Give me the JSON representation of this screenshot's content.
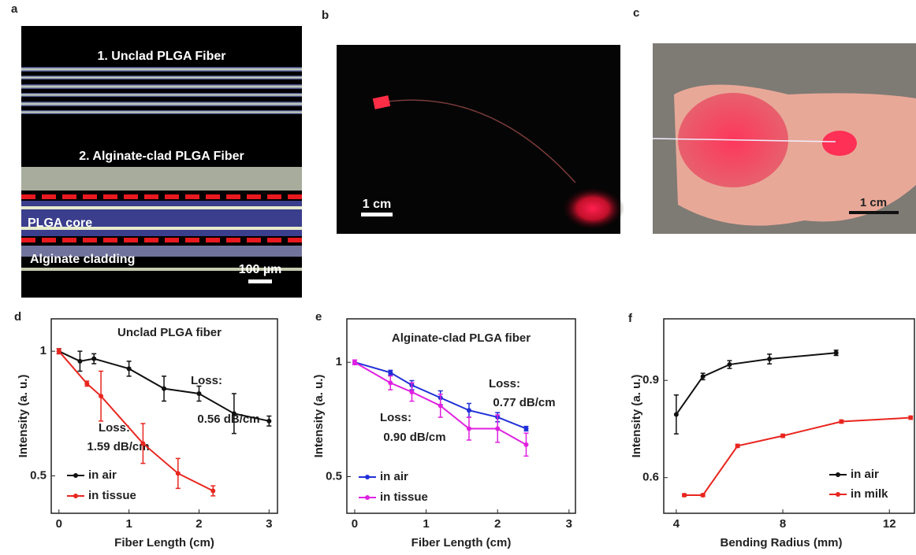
{
  "panels": {
    "a": {
      "label": "a",
      "texts": [
        "1. Unclad PLGA Fiber",
        "2. Alginate-clad PLGA Fiber",
        "PLGA core",
        "Alginate cladding"
      ],
      "scale": "100 µm"
    },
    "b": {
      "label": "b",
      "scale": "1 cm"
    },
    "c": {
      "label": "c",
      "scale": "1 cm"
    }
  },
  "chart_data": [
    {
      "type": "line",
      "panel_label": "d",
      "title": "Unclad PLGA fiber",
      "x_label": "Fiber Length (cm)",
      "y_label": "Intensity (a. u.)",
      "xlim": [
        -0.11,
        3.12
      ],
      "xticks": [
        0,
        1,
        2,
        3
      ],
      "ylim": [
        0.35,
        1.13
      ],
      "yticks": [
        0.5,
        1
      ],
      "annotations": [
        "Loss:",
        "0.56 dB/cm",
        "Loss:",
        "1.59 dB/cm"
      ],
      "series": [
        {
          "name": "in air",
          "color": "#111111",
          "x": [
            0,
            0.3,
            0.5,
            1,
            1.5,
            2,
            2.5,
            3
          ],
          "values": [
            1,
            0.96,
            0.97,
            0.93,
            0.85,
            0.83,
            0.75,
            0.72
          ],
          "errors": [
            0.01,
            0.04,
            0.02,
            0.03,
            0.05,
            0.03,
            0.08,
            0.02
          ]
        },
        {
          "name": "in tissue",
          "color": "#e8261f",
          "x": [
            0,
            0.4,
            0.6,
            1.2,
            1.7,
            2.2
          ],
          "values": [
            1,
            0.87,
            0.82,
            0.63,
            0.51,
            0.44
          ],
          "errors": [
            0.01,
            0.01,
            0.1,
            0.08,
            0.06,
            0.02
          ]
        }
      ]
    },
    {
      "type": "line",
      "panel_label": "e",
      "title": "Alginate-clad PLGA fiber",
      "x_label": "Fiber Length (cm)",
      "y_label": "Intensity (a. u.)",
      "xlim": [
        -0.11,
        3.09
      ],
      "xticks": [
        0,
        1,
        2,
        3
      ],
      "ylim": [
        0.34,
        1.19
      ],
      "yticks": [
        0.5,
        1
      ],
      "annotations": [
        "Loss:",
        "0.77 dB/cm",
        "Loss:",
        "0.90 dB/cm"
      ],
      "series": [
        {
          "name": "in air",
          "color": "#1f2fd8",
          "x": [
            0,
            0.5,
            0.8,
            1.2,
            1.6,
            2,
            2.4
          ],
          "values": [
            1,
            0.955,
            0.9,
            0.845,
            0.79,
            0.76,
            0.71
          ],
          "errors": [
            0.01,
            0.01,
            0.02,
            0.03,
            0.03,
            0.02,
            0.01
          ]
        },
        {
          "name": "in tissue",
          "color": "#e020e0",
          "x": [
            0,
            0.5,
            0.8,
            1.2,
            1.6,
            2,
            2.4
          ],
          "values": [
            1,
            0.91,
            0.87,
            0.81,
            0.71,
            0.71,
            0.64
          ],
          "errors": [
            0.01,
            0.03,
            0.04,
            0.05,
            0.05,
            0.06,
            0.05
          ]
        }
      ]
    },
    {
      "type": "line",
      "panel_label": "f",
      "x_label": "Bending Radius (mm)",
      "y_label": "Intensity (a. u.)",
      "xlim": [
        3.53,
        12.94
      ],
      "xticks": [
        4,
        8,
        12
      ],
      "ylim": [
        0.49,
        1.09
      ],
      "yticks": [
        0.6,
        0.9
      ],
      "series": [
        {
          "name": "in air",
          "color": "#111111",
          "x": [
            4,
            5,
            6,
            7.5,
            10
          ],
          "values": [
            0.795,
            0.912,
            0.949,
            0.966,
            0.985
          ],
          "errors": [
            0.06,
            0.01,
            0.012,
            0.015,
            0.008
          ]
        },
        {
          "name": "in milk",
          "color": "#e8261f",
          "x": [
            4.3,
            5,
            6.3,
            8,
            10.2,
            12.8
          ],
          "values": [
            0.546,
            0.546,
            0.698,
            0.729,
            0.773,
            0.785
          ],
          "errors": [
            0.004,
            0.004,
            0.005,
            0.005,
            0.005,
            0.005
          ]
        }
      ]
    }
  ]
}
